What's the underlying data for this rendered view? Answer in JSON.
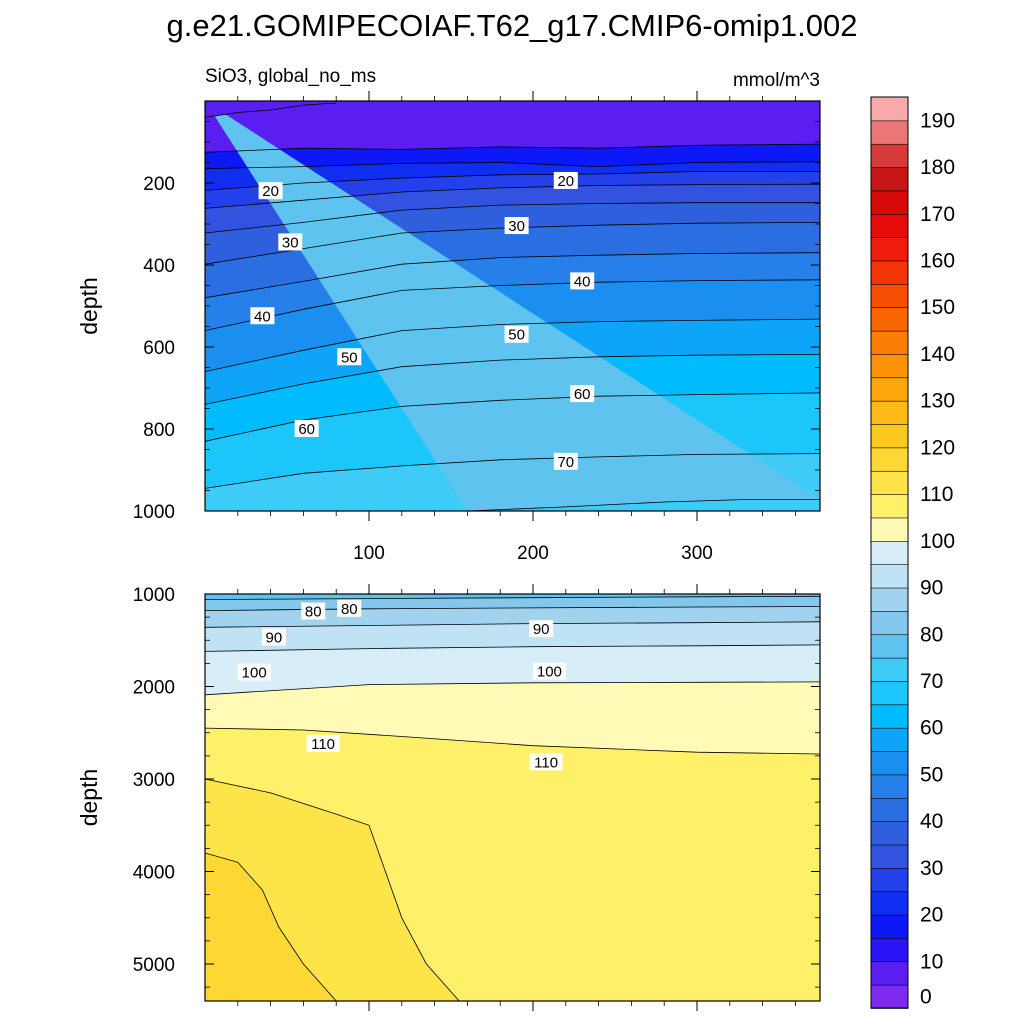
{
  "title": "g.e21.GOMIPECOIAF.T62_g17.CMIP6-omip1.002",
  "subtitle_left": "SiO3, global_no_ms",
  "subtitle_right": "mmol/m^3",
  "colorbar": {
    "levels": [
      0,
      5,
      10,
      15,
      20,
      25,
      30,
      35,
      40,
      45,
      50,
      55,
      60,
      65,
      70,
      75,
      80,
      85,
      90,
      95,
      100,
      105,
      110,
      115,
      120,
      125,
      130,
      135,
      140,
      145,
      150,
      155,
      160,
      165,
      170,
      175,
      180,
      185,
      190
    ],
    "colors": [
      "#7f2af0",
      "#5a1ff0",
      "#2a13f5",
      "#0d18f8",
      "#0f2ef2",
      "#2440ea",
      "#3352e0",
      "#2f5fdd",
      "#2a6ee2",
      "#2780ea",
      "#1a8ff0",
      "#0ea4f8",
      "#00bcff",
      "#1cc6fb",
      "#3ecbf7",
      "#5fc3ef",
      "#83c8ec",
      "#a1d3ef",
      "#bfe2f4",
      "#d7eef8",
      "#fffab5",
      "#fff06a",
      "#fde448",
      "#fdd835",
      "#fdc81f",
      "#fdb915",
      "#fca50c",
      "#fb9207",
      "#fa7d05",
      "#f96604",
      "#f54e03",
      "#f23505",
      "#ef1b0c",
      "#e60a0a",
      "#d60808",
      "#c81616",
      "#d73a3a",
      "#ec7575",
      "#f8aaaa"
    ],
    "tick_labels": [
      "0",
      "10",
      "20",
      "30",
      "40",
      "50",
      "60",
      "70",
      "80",
      "90",
      "100",
      "110",
      "120",
      "130",
      "140",
      "150",
      "160",
      "170",
      "180",
      "190"
    ]
  },
  "chart_data": [
    {
      "type": "contour",
      "panel": "upper",
      "xlabel": "",
      "ylabel": "depth",
      "xlim": [
        0,
        375
      ],
      "ylim": [
        1000,
        0
      ],
      "y_reversed": true,
      "x_ticks": [
        100,
        200,
        300
      ],
      "y_ticks": [
        200,
        400,
        600,
        800,
        1000
      ],
      "contour_interval": 5,
      "isolines": [
        {
          "level": 10,
          "points": [
            [
              0,
              40
            ],
            [
              20,
              28
            ],
            [
              40,
              22
            ],
            [
              60,
              10
            ],
            [
              80,
              5
            ]
          ]
        },
        {
          "level": 15,
          "points": [
            [
              0,
              125
            ],
            [
              60,
              115
            ],
            [
              120,
              118
            ],
            [
              180,
              112
            ],
            [
              240,
              115
            ],
            [
              300,
              108
            ],
            [
              375,
              105
            ]
          ]
        },
        {
          "level": 20,
          "points": [
            [
              0,
              165
            ],
            [
              60,
              160
            ],
            [
              120,
              152
            ],
            [
              180,
              150
            ],
            [
              240,
              160
            ],
            [
              300,
              150
            ],
            [
              375,
              148
            ]
          ]
        },
        {
          "level": 25,
          "points": [
            [
              0,
              218
            ],
            [
              60,
              200
            ],
            [
              120,
              188
            ],
            [
              180,
              180
            ],
            [
              240,
              178
            ],
            [
              300,
              172
            ],
            [
              375,
              172
            ]
          ]
        },
        {
          "level": 30,
          "points": [
            [
              0,
              262
            ],
            [
              60,
              242
            ],
            [
              120,
              222
            ],
            [
              180,
              212
            ],
            [
              240,
              206
            ],
            [
              300,
              204
            ],
            [
              375,
              203
            ]
          ]
        },
        {
          "level": 35,
          "points": [
            [
              0,
              322
            ],
            [
              60,
              296
            ],
            [
              120,
              266
            ],
            [
              180,
              254
            ],
            [
              240,
              250
            ],
            [
              300,
              248
            ],
            [
              375,
              248
            ]
          ]
        },
        {
          "level": 40,
          "points": [
            [
              0,
              398
            ],
            [
              60,
              360
            ],
            [
              120,
              322
            ],
            [
              180,
              310
            ],
            [
              240,
              303
            ],
            [
              300,
              298
            ],
            [
              375,
              296
            ]
          ]
        },
        {
          "level": 45,
          "points": [
            [
              0,
              480
            ],
            [
              60,
              440
            ],
            [
              120,
              398
            ],
            [
              180,
              382
            ],
            [
              240,
              376
            ],
            [
              300,
              372
            ],
            [
              375,
              370
            ]
          ]
        },
        {
          "level": 50,
          "points": [
            [
              0,
              560
            ],
            [
              60,
              508
            ],
            [
              120,
              462
            ],
            [
              180,
              450
            ],
            [
              240,
              442
            ],
            [
              300,
              438
            ],
            [
              375,
              436
            ]
          ]
        },
        {
          "level": 55,
          "points": [
            [
              0,
              660
            ],
            [
              60,
              608
            ],
            [
              120,
              560
            ],
            [
              180,
              545
            ],
            [
              240,
              538
            ],
            [
              300,
              535
            ],
            [
              375,
              532
            ]
          ]
        },
        {
          "level": 60,
          "points": [
            [
              0,
              740
            ],
            [
              60,
              690
            ],
            [
              120,
              648
            ],
            [
              180,
              632
            ],
            [
              240,
              624
            ],
            [
              300,
              620
            ],
            [
              375,
              618
            ]
          ]
        },
        {
          "level": 65,
          "points": [
            [
              0,
              830
            ],
            [
              60,
              778
            ],
            [
              120,
              745
            ],
            [
              180,
              730
            ],
            [
              240,
              720
            ],
            [
              300,
              716
            ],
            [
              375,
              712
            ]
          ]
        },
        {
          "level": 70,
          "points": [
            [
              0,
              945
            ],
            [
              60,
              908
            ],
            [
              120,
              890
            ],
            [
              180,
              875
            ],
            [
              240,
              868
            ],
            [
              300,
              862
            ],
            [
              375,
              860
            ]
          ]
        },
        {
          "level": 75,
          "points": [
            [
              160,
              1000
            ],
            [
              220,
              990
            ],
            [
              280,
              978
            ],
            [
              330,
              972
            ],
            [
              375,
              972
            ]
          ]
        }
      ],
      "labels": [
        {
          "text": "20",
          "x": 40,
          "y": 220
        },
        {
          "text": "20",
          "x": 220,
          "y": 195
        },
        {
          "text": "30",
          "x": 52,
          "y": 345
        },
        {
          "text": "30",
          "x": 190,
          "y": 305
        },
        {
          "text": "40",
          "x": 35,
          "y": 525
        },
        {
          "text": "40",
          "x": 230,
          "y": 440
        },
        {
          "text": "50",
          "x": 88,
          "y": 625
        },
        {
          "text": "50",
          "x": 190,
          "y": 570
        },
        {
          "text": "60",
          "x": 62,
          "y": 800
        },
        {
          "text": "60",
          "x": 230,
          "y": 715
        },
        {
          "text": "70",
          "x": 220,
          "y": 880
        }
      ]
    },
    {
      "type": "contour",
      "panel": "lower",
      "xlabel": "",
      "ylabel": "depth",
      "xlim": [
        0,
        375
      ],
      "ylim": [
        5400,
        1000
      ],
      "y_reversed": true,
      "y_ticks": [
        1000,
        2000,
        3000,
        4000,
        5000
      ],
      "contour_interval": 5,
      "isolines": [
        {
          "level": 80,
          "points": [
            [
              0,
              1060
            ],
            [
              100,
              1050
            ],
            [
              200,
              1040
            ],
            [
              300,
              1030
            ],
            [
              375,
              1025
            ]
          ]
        },
        {
          "level": 85,
          "points": [
            [
              0,
              1180
            ],
            [
              100,
              1160
            ],
            [
              200,
              1150
            ],
            [
              300,
              1140
            ],
            [
              375,
              1135
            ]
          ]
        },
        {
          "level": 90,
          "points": [
            [
              0,
              1360
            ],
            [
              100,
              1340
            ],
            [
              200,
              1320
            ],
            [
              300,
              1310
            ],
            [
              375,
              1300
            ]
          ]
        },
        {
          "level": 95,
          "points": [
            [
              0,
              1620
            ],
            [
              100,
              1590
            ],
            [
              200,
              1570
            ],
            [
              300,
              1560
            ],
            [
              375,
              1550
            ]
          ]
        },
        {
          "level": 100,
          "points": [
            [
              0,
              2090
            ],
            [
              100,
              1980
            ],
            [
              200,
              1960
            ],
            [
              300,
              1955
            ],
            [
              375,
              1950
            ]
          ]
        },
        {
          "level": 105,
          "points": [
            [
              0,
              2450
            ],
            [
              60,
              2470
            ],
            [
              120,
              2540
            ],
            [
              200,
              2640
            ],
            [
              300,
              2710
            ],
            [
              375,
              2730
            ]
          ]
        },
        {
          "level": 110,
          "points": [
            [
              0,
              3000
            ],
            [
              40,
              3150
            ],
            [
              80,
              3380
            ],
            [
              100,
              3500
            ],
            [
              110,
              4000
            ],
            [
              120,
              4500
            ],
            [
              135,
              5000
            ],
            [
              155,
              5400
            ]
          ]
        },
        {
          "level": 115,
          "points": [
            [
              0,
              3800
            ],
            [
              20,
              3900
            ],
            [
              35,
              4200
            ],
            [
              45,
              4600
            ],
            [
              60,
              5000
            ],
            [
              80,
              5400
            ]
          ]
        }
      ],
      "labels": [
        {
          "text": "80",
          "x": 66,
          "y": 1190
        },
        {
          "text": "80",
          "x": 88,
          "y": 1160
        },
        {
          "text": "90",
          "x": 42,
          "y": 1470
        },
        {
          "text": "90",
          "x": 205,
          "y": 1380
        },
        {
          "text": "100",
          "x": 30,
          "y": 1850
        },
        {
          "text": "100",
          "x": 210,
          "y": 1840
        },
        {
          "text": "110",
          "x": 72,
          "y": 2620
        },
        {
          "text": "110",
          "x": 208,
          "y": 2820
        }
      ]
    }
  ]
}
